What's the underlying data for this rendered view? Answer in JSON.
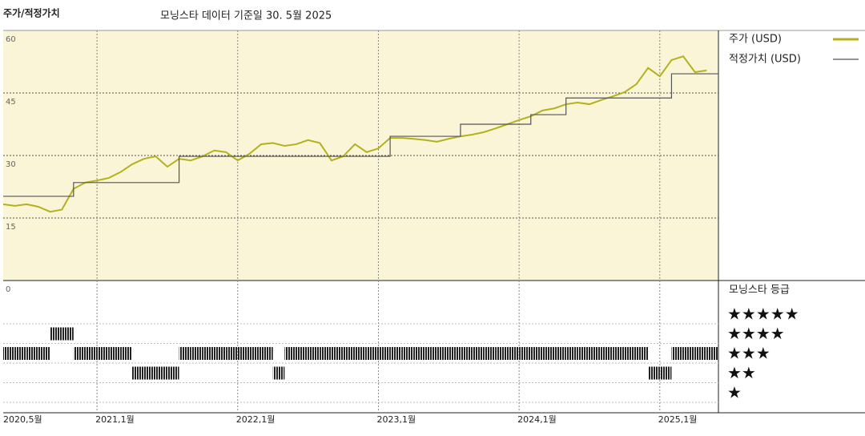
{
  "chart_data": {
    "type": "line",
    "title": "주가/적정가치",
    "subtitle": "모닝스타 데이터 기준일 30. 5월 2025",
    "x": [
      "2020-05",
      "2020-06",
      "2020-07",
      "2020-08",
      "2020-09",
      "2020-10",
      "2020-11",
      "2020-12",
      "2021-01",
      "2021-02",
      "2021-03",
      "2021-04",
      "2021-05",
      "2021-06",
      "2021-07",
      "2021-08",
      "2021-09",
      "2021-10",
      "2021-11",
      "2021-12",
      "2022-01",
      "2022-02",
      "2022-03",
      "2022-04",
      "2022-05",
      "2022-06",
      "2022-07",
      "2022-08",
      "2022-09",
      "2022-10",
      "2022-11",
      "2022-12",
      "2023-01",
      "2023-02",
      "2023-03",
      "2023-04",
      "2023-05",
      "2023-06",
      "2023-07",
      "2023-08",
      "2023-09",
      "2023-10",
      "2023-11",
      "2023-12",
      "2024-01",
      "2024-02",
      "2024-03",
      "2024-04",
      "2024-05",
      "2024-06",
      "2024-07",
      "2024-08",
      "2024-09",
      "2024-10",
      "2024-11",
      "2024-12",
      "2025-01",
      "2025-02",
      "2025-03",
      "2025-04",
      "2025-05"
    ],
    "series": [
      {
        "name": "주가 (USD)",
        "color": "#b3b21e",
        "values": [
          18.3,
          17.9,
          18.3,
          17.7,
          16.5,
          17,
          22,
          23.5,
          24,
          24.6,
          26,
          27.9,
          29.2,
          29.8,
          27.3,
          29.2,
          28.8,
          29.8,
          31.2,
          30.8,
          28.8,
          30.4,
          32.7,
          33,
          32.3,
          32.7,
          33.7,
          33,
          28.8,
          29.8,
          32.7,
          30.8,
          31.7,
          34.2,
          34.2,
          34,
          33.7,
          33.3,
          34,
          34.6,
          35,
          35.6,
          36.5,
          37.5,
          38.5,
          39.4,
          40.8,
          41.3,
          42.3,
          42.7,
          42.3,
          43.3,
          44.2,
          45.2,
          47.1,
          51,
          49,
          52.9,
          53.8,
          50,
          50.4
        ]
      },
      {
        "name": "적정가치 (USD)",
        "color": "#555555",
        "step": true,
        "values": [
          20.2,
          20.2,
          20.2,
          20.2,
          20.2,
          20.2,
          23.5,
          23.5,
          23.5,
          23.5,
          23.5,
          23.5,
          23.5,
          23.5,
          23.5,
          29.8,
          29.8,
          29.8,
          29.8,
          29.8,
          29.8,
          29.8,
          29.8,
          29.8,
          29.8,
          29.8,
          29.8,
          29.8,
          29.8,
          29.8,
          29.8,
          29.8,
          29.8,
          34.6,
          34.6,
          34.6,
          34.6,
          34.6,
          34.6,
          37.5,
          37.5,
          37.5,
          37.5,
          37.5,
          37.5,
          39.8,
          39.8,
          39.8,
          43.8,
          43.8,
          43.8,
          43.8,
          43.8,
          43.8,
          43.8,
          43.8,
          43.8,
          49.6,
          49.6,
          49.6,
          49.6
        ]
      }
    ],
    "ratings": {
      "name": "모닝스타 등급",
      "levels": [
        "★",
        "★★",
        "★★★",
        "★★★★",
        "★★★★★"
      ],
      "values": [
        3,
        3,
        3,
        3,
        4,
        4,
        3,
        3,
        3,
        3,
        3,
        2,
        2,
        2,
        2,
        3,
        3,
        3,
        3,
        3,
        3,
        3,
        3,
        2,
        3,
        3,
        3,
        3,
        3,
        3,
        3,
        3,
        3,
        3,
        3,
        3,
        3,
        3,
        3,
        3,
        3,
        3,
        3,
        3,
        3,
        3,
        3,
        3,
        3,
        3,
        3,
        3,
        3,
        3,
        3,
        2,
        2,
        3,
        3,
        3,
        3
      ]
    },
    "xlim": [
      "2020-05",
      "2025-06"
    ],
    "xticks": [
      {
        "value": "2020-05",
        "label": "2020,5월"
      },
      {
        "value": "2021-01",
        "label": "2021,1월"
      },
      {
        "value": "2022-01",
        "label": "2022,1월"
      },
      {
        "value": "2023-01",
        "label": "2023,1월"
      },
      {
        "value": "2024-01",
        "label": "2024,1월"
      },
      {
        "value": "2025-01",
        "label": "2025,1월"
      }
    ],
    "ylim": [
      0,
      60
    ],
    "yticks": [
      0,
      15,
      30,
      45,
      60
    ],
    "grid": true
  }
}
